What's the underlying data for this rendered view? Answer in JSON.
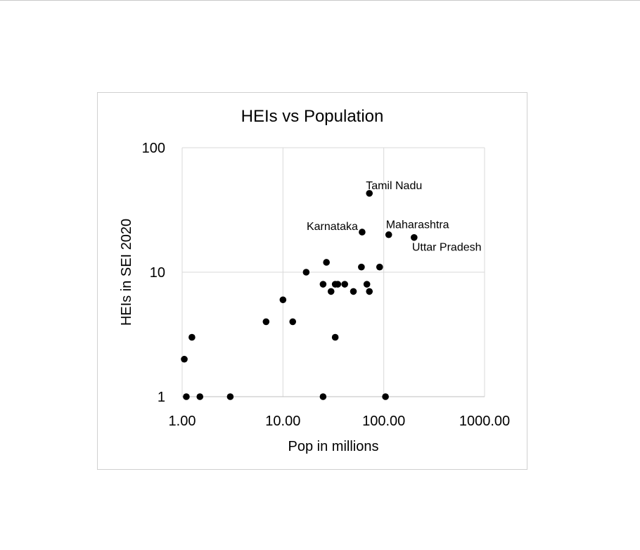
{
  "chart_data": {
    "type": "scatter",
    "title": "HEIs vs Population",
    "xlabel": "Pop in millions",
    "ylabel": "HEIs in SEI 2020",
    "x_scale": "log",
    "y_scale": "log",
    "xlim": [
      1,
      1000
    ],
    "ylim": [
      1,
      100
    ],
    "x_ticks": [
      "1.00",
      "10.00",
      "100.00",
      "1000.00"
    ],
    "y_ticks": [
      "1",
      "10",
      "100"
    ],
    "grid": true,
    "marker_color": "#000000",
    "points": [
      {
        "x": 72,
        "y": 43,
        "label": "Tamil Nadu"
      },
      {
        "x": 61,
        "y": 21,
        "label": "Karnataka"
      },
      {
        "x": 112,
        "y": 20,
        "label": "Maharashtra"
      },
      {
        "x": 200,
        "y": 19,
        "label": "Uttar Pradesh"
      },
      {
        "x": 27,
        "y": 12
      },
      {
        "x": 17,
        "y": 10
      },
      {
        "x": 60,
        "y": 11
      },
      {
        "x": 91,
        "y": 11
      },
      {
        "x": 25,
        "y": 8
      },
      {
        "x": 33,
        "y": 8
      },
      {
        "x": 35,
        "y": 8
      },
      {
        "x": 41,
        "y": 8
      },
      {
        "x": 68,
        "y": 8
      },
      {
        "x": 30,
        "y": 7
      },
      {
        "x": 50,
        "y": 7
      },
      {
        "x": 72,
        "y": 7
      },
      {
        "x": 10,
        "y": 6
      },
      {
        "x": 6.8,
        "y": 4
      },
      {
        "x": 12.5,
        "y": 4
      },
      {
        "x": 1.25,
        "y": 3
      },
      {
        "x": 33,
        "y": 3
      },
      {
        "x": 1.05,
        "y": 2
      },
      {
        "x": 1.1,
        "y": 1
      },
      {
        "x": 1.5,
        "y": 1
      },
      {
        "x": 3,
        "y": 1
      },
      {
        "x": 25,
        "y": 1
      },
      {
        "x": 104,
        "y": 1
      }
    ]
  }
}
